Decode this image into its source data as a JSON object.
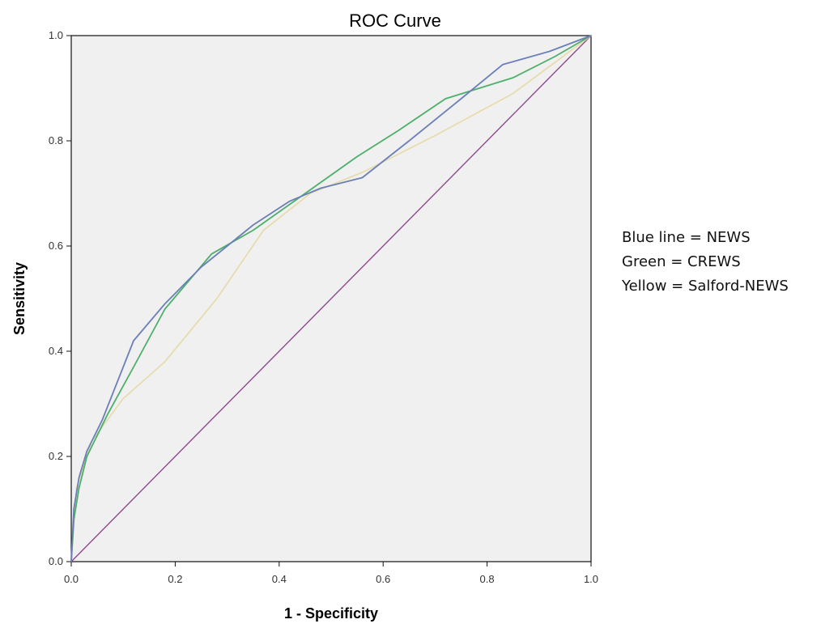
{
  "chart_data": {
    "type": "line",
    "title": "ROC Curve",
    "xlabel": "1 - Specificity",
    "ylabel": "Sensitivity",
    "xlim": [
      0.0,
      1.0
    ],
    "ylim": [
      0.0,
      1.0
    ],
    "x_ticks": [
      "0.0",
      "0.2",
      "0.4",
      "0.6",
      "0.8",
      "1.0"
    ],
    "y_ticks": [
      "0.0",
      "0.2",
      "0.4",
      "0.6",
      "0.8",
      "1.0"
    ],
    "grid": false,
    "plot_background": "#f0f0f0",
    "series": [
      {
        "color": "#6b7fb8",
        "points": [
          [
            0.0,
            0.0
          ],
          [
            0.005,
            0.1
          ],
          [
            0.015,
            0.16
          ],
          [
            0.03,
            0.21
          ],
          [
            0.06,
            0.27
          ],
          [
            0.12,
            0.42
          ],
          [
            0.18,
            0.49
          ],
          [
            0.25,
            0.56
          ],
          [
            0.3,
            0.6
          ],
          [
            0.35,
            0.64
          ],
          [
            0.42,
            0.685
          ],
          [
            0.48,
            0.71
          ],
          [
            0.56,
            0.73
          ],
          [
            0.65,
            0.8
          ],
          [
            0.75,
            0.88
          ],
          [
            0.83,
            0.945
          ],
          [
            0.92,
            0.97
          ],
          [
            1.0,
            1.0
          ]
        ]
      },
      {
        "color": "#4caf6a",
        "points": [
          [
            0.0,
            0.0
          ],
          [
            0.005,
            0.08
          ],
          [
            0.015,
            0.14
          ],
          [
            0.03,
            0.2
          ],
          [
            0.07,
            0.28
          ],
          [
            0.12,
            0.37
          ],
          [
            0.18,
            0.48
          ],
          [
            0.27,
            0.585
          ],
          [
            0.35,
            0.63
          ],
          [
            0.45,
            0.7
          ],
          [
            0.55,
            0.77
          ],
          [
            0.63,
            0.82
          ],
          [
            0.72,
            0.88
          ],
          [
            0.85,
            0.92
          ],
          [
            0.93,
            0.96
          ],
          [
            1.0,
            1.0
          ]
        ]
      },
      {
        "color": "#e6dcae",
        "points": [
          [
            0.0,
            0.0
          ],
          [
            0.01,
            0.14
          ],
          [
            0.04,
            0.23
          ],
          [
            0.1,
            0.31
          ],
          [
            0.18,
            0.38
          ],
          [
            0.28,
            0.5
          ],
          [
            0.37,
            0.63
          ],
          [
            0.46,
            0.7
          ],
          [
            0.56,
            0.74
          ],
          [
            0.7,
            0.81
          ],
          [
            0.85,
            0.89
          ],
          [
            1.0,
            1.0
          ]
        ]
      },
      {
        "color": "#8e4a8e",
        "points": [
          [
            0.0,
            0.0
          ],
          [
            1.0,
            1.0
          ]
        ]
      }
    ]
  },
  "legend": {
    "line1": "Blue line = NEWS",
    "line2": "Green = CREWS",
    "line3": "Yellow = Salford-NEWS"
  }
}
